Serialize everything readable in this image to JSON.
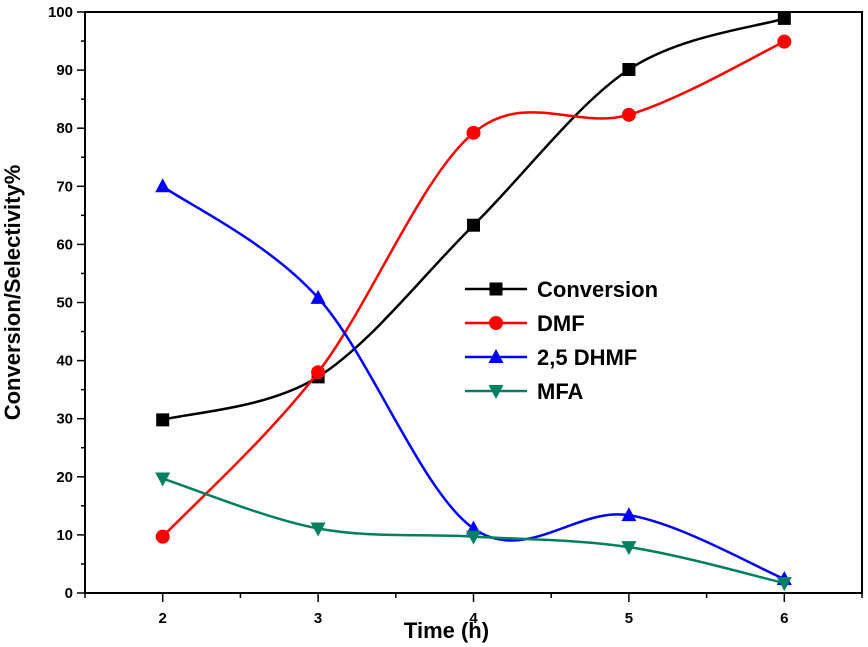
{
  "chart_data": {
    "type": "line",
    "title": "",
    "xlabel": "Time (h)",
    "ylabel": "Conversion/Selectivity%",
    "xlim": [
      1.5,
      6.5
    ],
    "ylim": [
      0,
      100
    ],
    "x_ticks": [
      2,
      3,
      4,
      5,
      6
    ],
    "y_ticks": [
      0,
      10,
      20,
      30,
      40,
      50,
      60,
      70,
      80,
      90,
      100
    ],
    "grid": false,
    "legend_position": "center-right",
    "x": [
      2,
      3,
      4,
      5,
      6
    ],
    "series": [
      {
        "name": "Conversion",
        "color": "#000000",
        "marker": "square",
        "values": [
          29.8,
          37.2,
          63.3,
          90.1,
          98.9
        ]
      },
      {
        "name": "DMF",
        "color": "#ff0000",
        "marker": "circle",
        "values": [
          9.7,
          38.0,
          79.2,
          82.3,
          94.9
        ]
      },
      {
        "name": "2,5 DHMF",
        "color": "#0000ff",
        "marker": "triangle-up",
        "values": [
          70.0,
          50.8,
          11.1,
          13.4,
          2.4
        ]
      },
      {
        "name": "MFA",
        "color": "#008060",
        "marker": "triangle-down",
        "values": [
          19.7,
          11.1,
          9.7,
          7.9,
          1.7
        ]
      }
    ]
  }
}
